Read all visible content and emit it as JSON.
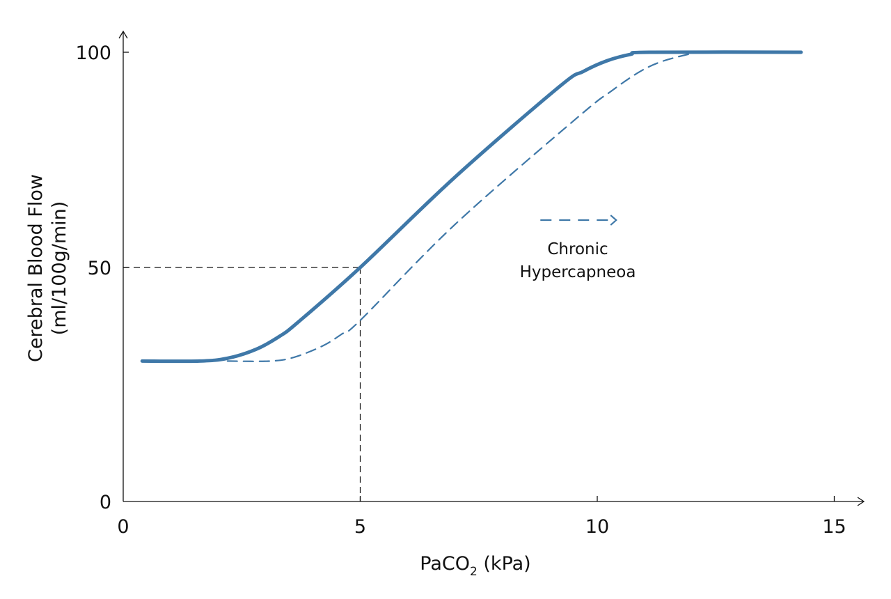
{
  "chart_data": {
    "type": "line",
    "title": "",
    "xlabel": "PaCO",
    "xlabel_sub": "2",
    "xlabel_unit": " (kPa)",
    "ylabel_line1": "Cerebral Blood Flow",
    "ylabel_line2": "(ml/100g/min)",
    "xlim": [
      0,
      15
    ],
    "ylim": [
      0,
      100
    ],
    "x_ticks": [
      "0",
      "5",
      "10",
      "15"
    ],
    "y_ticks": [
      "0",
      "50",
      "100"
    ],
    "grid": false,
    "series": [
      {
        "style": "solid",
        "color": "#3f78a8",
        "x": [
          0.4,
          1.6,
          2.2,
          2.8,
          3.3,
          3.7,
          5,
          7,
          9.2,
          9.7,
          10.2,
          10.7,
          11.1,
          14.3
        ],
        "y": [
          30,
          30,
          30.6,
          32.5,
          35.3,
          38.4,
          50,
          71,
          92,
          95.5,
          98,
          99.5,
          100,
          100
        ]
      },
      {
        "style": "dashed",
        "color": "#3f78a8",
        "x": [
          2.2,
          3.1,
          3.6,
          4.2,
          4.6,
          5,
          7,
          9.6,
          10.3,
          10.9,
          11.4,
          12.1
        ],
        "y": [
          30,
          30,
          30.8,
          33.2,
          35.7,
          38.7,
          60,
          85,
          91,
          95.5,
          98,
          100
        ]
      }
    ],
    "reference": {
      "x": 5,
      "y": 50,
      "color": "#111111"
    },
    "annotation": {
      "line1": "Chronic",
      "line2": "Hypercapneoa",
      "arrow_from": [
        8.8,
        61
      ],
      "arrow_to": [
        10.4,
        61
      ],
      "arrow_style": "dashed"
    }
  }
}
